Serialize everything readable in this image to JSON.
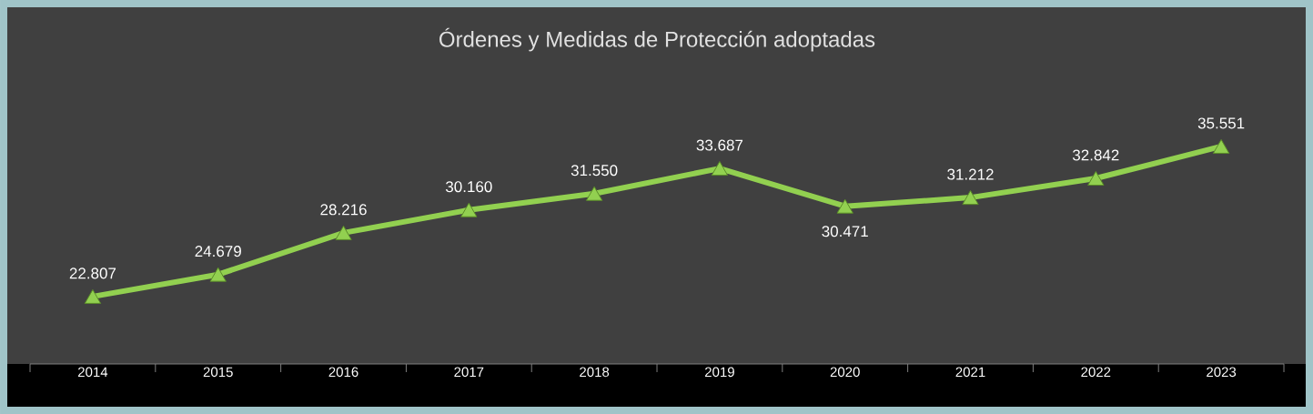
{
  "chart_data": {
    "type": "line",
    "title": "Órdenes y Medidas de Protección adoptadas",
    "categories": [
      "2014",
      "2015",
      "2016",
      "2017",
      "2018",
      "2019",
      "2020",
      "2021",
      "2022",
      "2023"
    ],
    "values": [
      22807,
      24679,
      28216,
      30160,
      31550,
      33687,
      30471,
      31212,
      32842,
      35551
    ],
    "value_labels": [
      "22.807",
      "24.679",
      "28.216",
      "30.160",
      "31.550",
      "33.687",
      "30.471",
      "31.212",
      "32.842",
      "35.551"
    ],
    "color": "#92d050",
    "marker": "triangle",
    "line_style": "solid"
  }
}
